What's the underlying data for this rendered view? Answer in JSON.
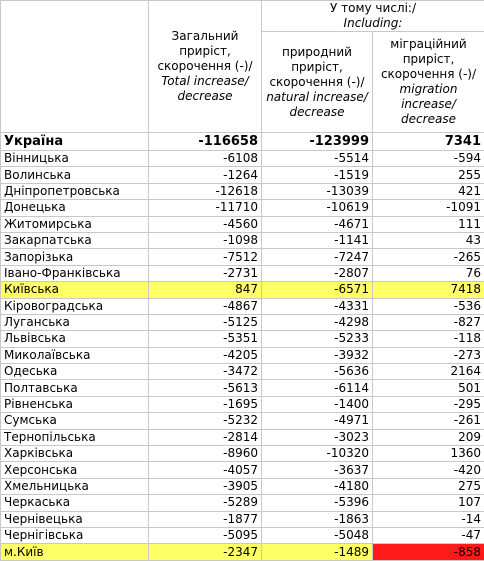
{
  "header": {
    "including_ua": "У тому числі:/",
    "including_en": "Including:",
    "col_total_ua": "Загальний приріст, скорочення (-)/",
    "col_total_en": "Total increase/ decrease",
    "col_natural_ua": "природний приріст, скорочення (-)/",
    "col_natural_en": "natural increase/ decrease",
    "col_migration_ua": "міграційний приріст, скорочення (-)/",
    "col_migration_en": "migration increase/ decrease"
  },
  "rows": [
    {
      "region": "Україна",
      "total": "-116658",
      "natural": "-123999",
      "migration": "7341"
    },
    {
      "region": "Вінницька",
      "total": "-6108",
      "natural": "-5514",
      "migration": "-594"
    },
    {
      "region": "Волинська",
      "total": "-1264",
      "natural": "-1519",
      "migration": "255"
    },
    {
      "region": "Дніпропетровська",
      "total": "-12618",
      "natural": "-13039",
      "migration": "421"
    },
    {
      "region": "Донецька",
      "total": "-11710",
      "natural": "-10619",
      "migration": "-1091"
    },
    {
      "region": "Житомирська",
      "total": "-4560",
      "natural": "-4671",
      "migration": "111"
    },
    {
      "region": "Закарпатська",
      "total": "-1098",
      "natural": "-1141",
      "migration": "43"
    },
    {
      "region": "Запорізька",
      "total": "-7512",
      "natural": "-7247",
      "migration": "-265"
    },
    {
      "region": "Івано-Франківська",
      "total": "-2731",
      "natural": "-2807",
      "migration": "76"
    },
    {
      "region": "Київська",
      "total": "847",
      "natural": "-6571",
      "migration": "7418"
    },
    {
      "region": "Кіровоградська",
      "total": "-4867",
      "natural": "-4331",
      "migration": "-536"
    },
    {
      "region": "Луганська",
      "total": "-5125",
      "natural": "-4298",
      "migration": "-827"
    },
    {
      "region": "Львівська",
      "total": "-5351",
      "natural": "-5233",
      "migration": "-118"
    },
    {
      "region": "Миколаївська",
      "total": "-4205",
      "natural": "-3932",
      "migration": "-273"
    },
    {
      "region": "Одеська",
      "total": "-3472",
      "natural": "-5636",
      "migration": "2164"
    },
    {
      "region": "Полтавська",
      "total": "-5613",
      "natural": "-6114",
      "migration": "501"
    },
    {
      "region": "Рівненська",
      "total": "-1695",
      "natural": "-1400",
      "migration": "-295"
    },
    {
      "region": "Сумська",
      "total": "-5232",
      "natural": "-4971",
      "migration": "-261"
    },
    {
      "region": "Тернопільська",
      "total": "-2814",
      "natural": "-3023",
      "migration": "209"
    },
    {
      "region": "Харківська",
      "total": "-8960",
      "natural": "-10320",
      "migration": "1360"
    },
    {
      "region": "Херсонська",
      "total": "-4057",
      "natural": "-3637",
      "migration": "-420"
    },
    {
      "region": "Хмельницька",
      "total": "-3905",
      "natural": "-4180",
      "migration": "275"
    },
    {
      "region": "Черкаська",
      "total": "-5289",
      "natural": "-5396",
      "migration": "107"
    },
    {
      "region": "Чернівецька",
      "total": "-1877",
      "natural": "-1863",
      "migration": "-14"
    },
    {
      "region": "Чернігівська",
      "total": "-5095",
      "natural": "-5048",
      "migration": "-47"
    },
    {
      "region": "м.Київ",
      "total": "-2347",
      "natural": "-1489",
      "migration": "-858"
    }
  ],
  "highlight_color": "#ffff66",
  "alert_color": "#ff1a1a"
}
